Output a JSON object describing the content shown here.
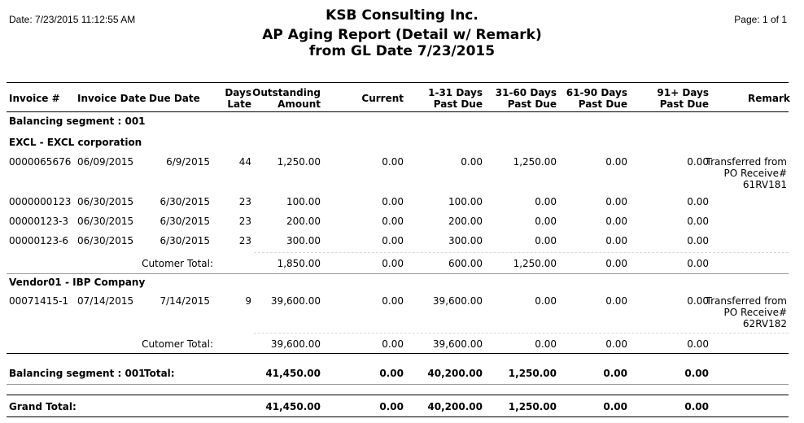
{
  "header": {
    "date": "Date: 7/23/2015 11:12:55 AM",
    "page": "Page: 1 of 1",
    "company": "KSB Consulting Inc.",
    "report_title": "AP Aging Report (Detail w/ Remark)",
    "subtitle": "from GL Date 7/23/2015"
  },
  "columns": {
    "invoice_no": "Invoice #",
    "invoice_date": "Invoice Date",
    "due_date": "Due Date",
    "days_late": [
      "Days",
      "Late"
    ],
    "outstanding": [
      "Outstanding",
      "Amount"
    ],
    "current": "Current",
    "d1_31": [
      "1-31 Days",
      "Past Due"
    ],
    "d31_60": [
      "31-60 Days",
      "Past Due"
    ],
    "d61_90": [
      "61-90 Days",
      "Past Due"
    ],
    "d91": [
      "91+ Days",
      "Past Due"
    ],
    "remark": "Remark"
  },
  "segment_label": "Balancing segment : 001",
  "vendors": [
    {
      "name": "EXCL - EXCL corporation",
      "rows": [
        {
          "invoice": "0000065676",
          "invoice_date": "06/09/2015",
          "due_date": "6/9/2015",
          "days_late": "44",
          "outstanding": "1,250.00",
          "current": "0.00",
          "d1_31": "0.00",
          "d31_60": "1,250.00",
          "d61_90": "0.00",
          "d91": "0.00",
          "remark": [
            "Transferred from",
            "PO Receive#",
            "61RV181"
          ]
        },
        {
          "invoice": "0000000123",
          "invoice_date": "06/30/2015",
          "due_date": "6/30/2015",
          "days_late": "23",
          "outstanding": "100.00",
          "current": "0.00",
          "d1_31": "100.00",
          "d31_60": "0.00",
          "d61_90": "0.00",
          "d91": "0.00",
          "remark": []
        },
        {
          "invoice": "00000123-3",
          "invoice_date": "06/30/2015",
          "due_date": "6/30/2015",
          "days_late": "23",
          "outstanding": "200.00",
          "current": "0.00",
          "d1_31": "200.00",
          "d31_60": "0.00",
          "d61_90": "0.00",
          "d91": "0.00",
          "remark": []
        },
        {
          "invoice": "00000123-6",
          "invoice_date": "06/30/2015",
          "due_date": "6/30/2015",
          "days_late": "23",
          "outstanding": "300.00",
          "current": "0.00",
          "d1_31": "300.00",
          "d31_60": "0.00",
          "d61_90": "0.00",
          "d91": "0.00",
          "remark": []
        }
      ],
      "total": {
        "label": "Cutomer Total:",
        "outstanding": "1,850.00",
        "current": "0.00",
        "d1_31": "600.00",
        "d31_60": "1,250.00",
        "d61_90": "0.00",
        "d91": "0.00"
      }
    },
    {
      "name": "Vendor01 - IBP Company",
      "rows": [
        {
          "invoice": "00071415-1",
          "invoice_date": "07/14/2015",
          "due_date": "7/14/2015",
          "days_late": "9",
          "outstanding": "39,600.00",
          "current": "0.00",
          "d1_31": "39,600.00",
          "d31_60": "0.00",
          "d61_90": "0.00",
          "d91": "0.00",
          "remark": [
            "Transferred from",
            "PO Receive#",
            "62RV182"
          ]
        }
      ],
      "total": {
        "label": "Cutomer Total:",
        "outstanding": "39,600.00",
        "current": "0.00",
        "d1_31": "39,600.00",
        "d31_60": "0.00",
        "d61_90": "0.00",
        "d91": "0.00"
      }
    }
  ],
  "segment_total": {
    "label": "Balancing segment : 001",
    "total_label": "Total:",
    "outstanding": "41,450.00",
    "current": "0.00",
    "d1_31": "40,200.00",
    "d31_60": "1,250.00",
    "d61_90": "0.00",
    "d91": "0.00"
  },
  "grand_total": {
    "label": "Grand Total:",
    "outstanding": "41,450.00",
    "current": "0.00",
    "d1_31": "40,200.00",
    "d31_60": "1,250.00",
    "d61_90": "0.00",
    "d91": "0.00"
  }
}
